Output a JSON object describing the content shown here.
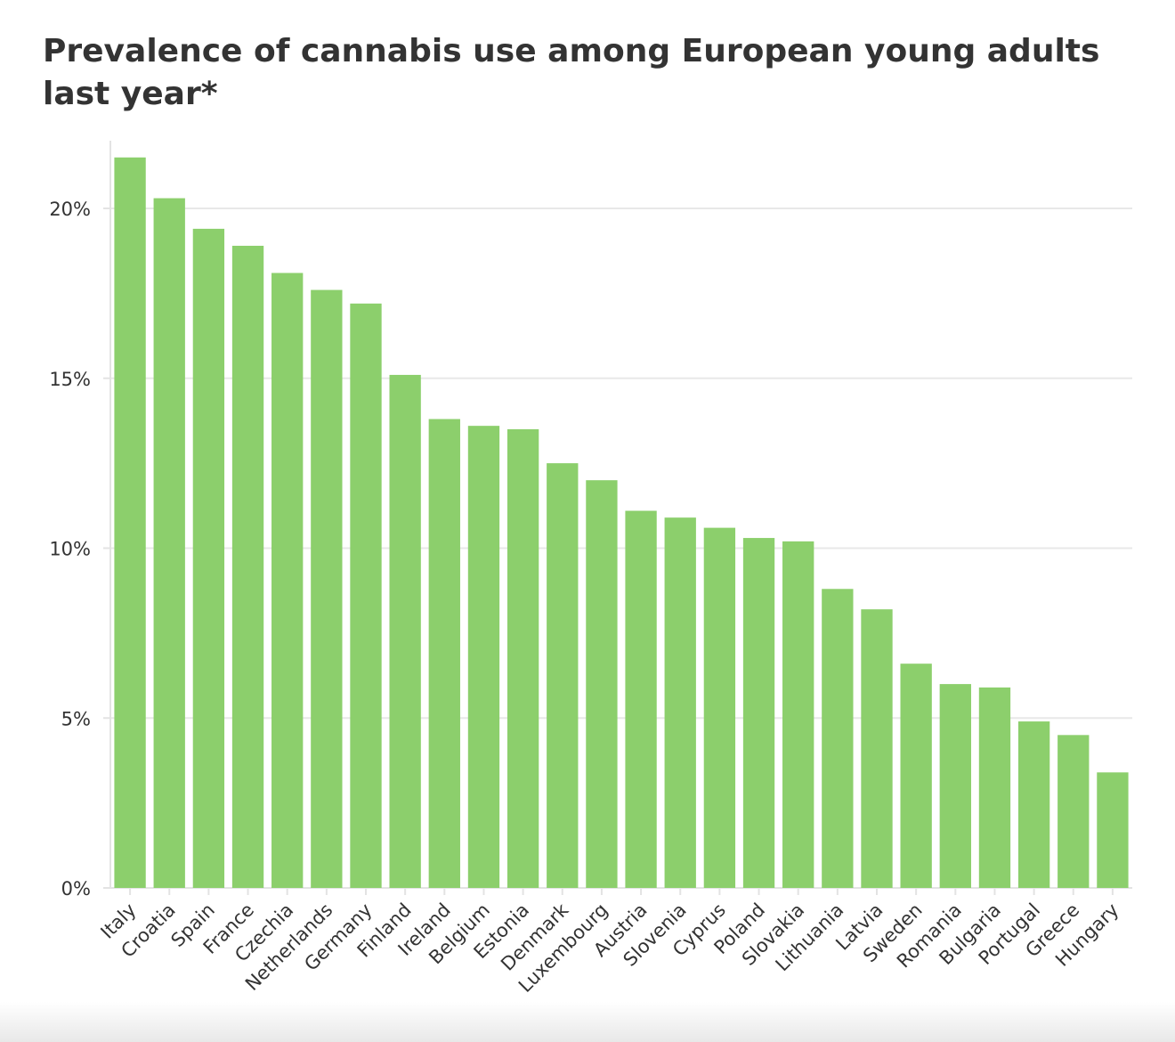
{
  "chart_data": {
    "type": "bar",
    "title": "Prevalence of cannabis use among European young adults last year*",
    "xlabel": "",
    "ylabel": "",
    "ylim": [
      0,
      22
    ],
    "yticks": [
      0,
      5,
      10,
      15,
      20
    ],
    "ytick_labels": [
      "0%",
      "5%",
      "10%",
      "15%",
      "20%"
    ],
    "grid": true,
    "legend": "none",
    "bar_color": "#8ccf6c",
    "categories": [
      "Italy",
      "Croatia",
      "Spain",
      "France",
      "Czechia",
      "Netherlands",
      "Germany",
      "Finland",
      "Ireland",
      "Belgium",
      "Estonia",
      "Denmark",
      "Luxembourg",
      "Austria",
      "Slovenia",
      "Cyprus",
      "Poland",
      "Slovakia",
      "Lithuania",
      "Latvia",
      "Sweden",
      "Romania",
      "Bulgaria",
      "Portugal",
      "Greece",
      "Hungary"
    ],
    "values": [
      21.5,
      20.3,
      19.4,
      18.9,
      18.1,
      17.6,
      17.2,
      15.1,
      13.8,
      13.6,
      13.5,
      12.5,
      12.0,
      11.1,
      10.9,
      10.6,
      10.3,
      10.2,
      8.8,
      8.2,
      6.6,
      6.0,
      5.9,
      4.9,
      4.5,
      3.4
    ]
  }
}
